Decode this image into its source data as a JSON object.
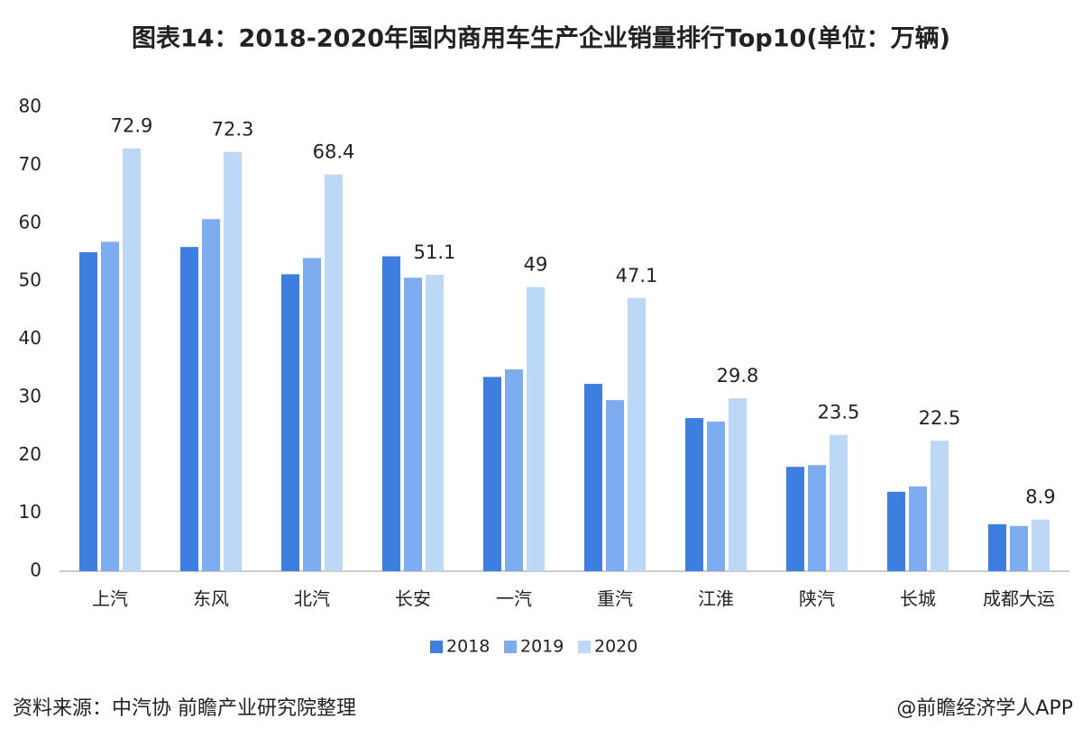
{
  "chart_data": {
    "type": "bar",
    "title": "图表14：2018-2020年国内商用车生产企业销量排行Top10(单位：万辆)",
    "categories": [
      "上汽",
      "东风",
      "北汽",
      "长安",
      "一汽",
      "重汽",
      "江淮",
      "陕汽",
      "长城",
      "成都大运"
    ],
    "series": [
      {
        "name": "2018",
        "color": "#3c7fe1",
        "values": [
          55.0,
          55.9,
          51.2,
          54.3,
          33.5,
          32.3,
          26.4,
          18.0,
          13.7,
          8.1
        ]
      },
      {
        "name": "2019",
        "color": "#7eacf0",
        "values": [
          56.8,
          60.7,
          54.0,
          50.6,
          34.8,
          29.5,
          25.8,
          18.3,
          14.6,
          7.8
        ]
      },
      {
        "name": "2020",
        "color": "#bdd7f7",
        "values": [
          72.9,
          72.3,
          68.4,
          51.1,
          49,
          47.1,
          29.8,
          23.5,
          22.5,
          8.9
        ],
        "data_labels": true
      }
    ],
    "ylim": [
      0,
      80
    ],
    "yticks": [
      0,
      10,
      20,
      30,
      40,
      50,
      60,
      70,
      80
    ],
    "grid": false,
    "legend": "bottom",
    "source": "资料来源：中汽协 前瞻产业研究院整理",
    "credit": "@前瞻经济学人APP"
  }
}
